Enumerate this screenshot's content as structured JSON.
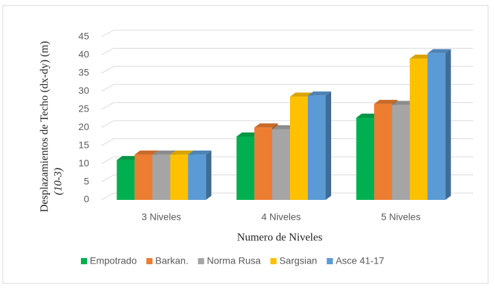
{
  "chart_data": {
    "type": "bar3d",
    "ylabel": [
      "Desplazamientos de Techo (dx-dy) (m)",
      "(10-3)"
    ],
    "xlabel": "Numero de Niveles",
    "categories": [
      "3 Niveles",
      "4 Niveles",
      "5 Niveles"
    ],
    "series": [
      {
        "name": "Empotrado",
        "color": "#00b050",
        "values": [
          11,
          17.5,
          22.7
        ]
      },
      {
        "name": "Barkan.",
        "color": "#ed7d31",
        "values": [
          12.5,
          20,
          26.5
        ]
      },
      {
        "name": "Norma Rusa",
        "color": "#a5a5a5",
        "values": [
          12.5,
          19.5,
          26.2
        ]
      },
      {
        "name": "Sargsian",
        "color": "#ffc000",
        "values": [
          12.5,
          28.5,
          39
        ]
      },
      {
        "name": "Asce 41-17",
        "color": "#5b9bd5",
        "values": [
          12.5,
          28.8,
          40.5
        ]
      }
    ],
    "ylim": [
      0,
      45
    ],
    "yticks": [
      0,
      5,
      10,
      15,
      20,
      25,
      30,
      35,
      40,
      45
    ],
    "grid": true,
    "legend": "bottom"
  }
}
